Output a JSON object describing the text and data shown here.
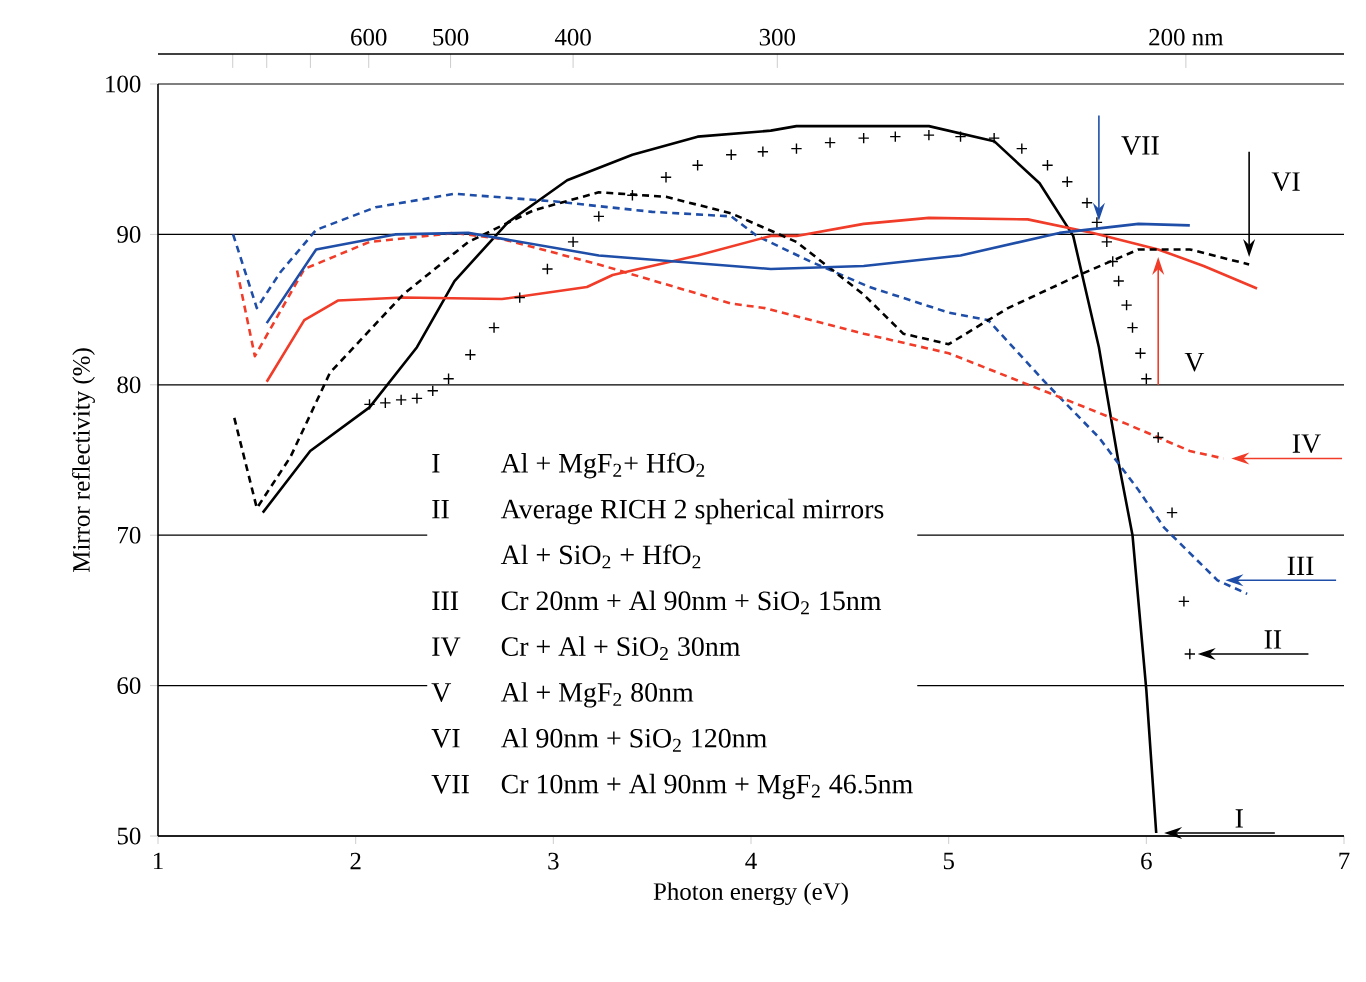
{
  "chart_data": {
    "type": "line",
    "xlabel": "Photon energy (eV)",
    "ylabel": "Mirror reflectivity (%)",
    "xlim": [
      1,
      7
    ],
    "xticks": [
      1,
      2,
      3,
      4,
      5,
      6,
      7
    ],
    "ylim": [
      50,
      100
    ],
    "yticks": [
      50,
      60,
      70,
      80,
      90,
      100
    ],
    "grid": "y",
    "legend": "right",
    "annotations": [
      "600",
      "500",
      "400",
      "300",
      "200 nm",
      "Al + MgF$_{2}$+ HfO$_{2}$",
      "Average RICH 2 spherical mirrors",
      "Al + SiO$_{2}$ + HfO$_{2}$",
      "Cr 20nm + Al 90nm + SiO$_{2}$ 15nm",
      "Cr + Al + SiO$_{2}$ 30nm",
      "Al + MgF$_{2}$ 80nm",
      "Al 90nm + SiO$_{2}$ 120nm",
      "Cr 10nm + Al 90nm + MgF$_{2}$ 46.5nm"
    ],
    "series": [
      {
        "name": "I",
        "color": "#000000",
        "line_style": "solid",
        "x": [
          1.53,
          1.77,
          2.07,
          2.31,
          2.5,
          2.77,
          3.07,
          3.4,
          3.73,
          4.1,
          4.23,
          4.9,
          5.23,
          5.46,
          5.63,
          5.76,
          5.86,
          5.93,
          6.0,
          6.05
        ],
        "values": [
          71.5,
          75.6,
          78.5,
          82.5,
          86.9,
          90.8,
          93.6,
          95.3,
          96.5,
          96.9,
          97.2,
          97.2,
          96.2,
          93.4,
          89.9,
          82.5,
          74.8,
          70,
          59.7,
          50.2
        ]
      },
      {
        "name": "II",
        "type": "scatter",
        "marker": "cross",
        "color": "#000000",
        "x": [
          2.07,
          2.15,
          2.23,
          2.31,
          2.39,
          2.47,
          2.58,
          2.7,
          2.83,
          2.97,
          3.1,
          3.23,
          3.4,
          3.57,
          3.73,
          3.9,
          4.06,
          4.23,
          4.4,
          4.57,
          4.73,
          4.9,
          5.06,
          5.23,
          5.37,
          5.5,
          5.6,
          5.7,
          5.75,
          5.8,
          5.83,
          5.86,
          5.9,
          5.93,
          5.97,
          6.0,
          6.06,
          6.13,
          6.19,
          6.22
        ],
        "values": [
          78.7,
          78.8,
          79.0,
          79.1,
          79.6,
          80.4,
          82.0,
          83.8,
          85.8,
          87.7,
          89.5,
          91.2,
          92.6,
          93.8,
          94.6,
          95.3,
          95.5,
          95.7,
          96.1,
          96.4,
          96.5,
          96.6,
          96.5,
          96.4,
          95.7,
          94.6,
          93.5,
          92.1,
          90.8,
          89.5,
          88.2,
          86.9,
          85.3,
          83.8,
          82.1,
          80.4,
          76.5,
          71.5,
          65.6,
          62.1
        ]
      },
      {
        "name": "III",
        "color": "#1f4ea8",
        "line_style": "dashed",
        "x": [
          1.38,
          1.5,
          1.62,
          1.8,
          2.1,
          2.5,
          3.0,
          3.5,
          3.9,
          4.03,
          4.3,
          4.6,
          5.0,
          5.2,
          5.5,
          5.76,
          5.96,
          6.09,
          6.36,
          6.51
        ],
        "values": [
          90,
          85.1,
          87.5,
          90.3,
          91.8,
          92.7,
          92.2,
          91.5,
          91.2,
          89.9,
          88.2,
          86.5,
          84.8,
          84.3,
          80,
          76.5,
          73,
          70.5,
          67,
          66.1
        ]
      },
      {
        "name": "IV",
        "color": "#f03c28",
        "line_style": "dashed",
        "x": [
          1.4,
          1.49,
          1.74,
          2.07,
          2.5,
          2.74,
          3.23,
          3.9,
          4.07,
          4.57,
          5.0,
          5.5,
          5.9,
          6.22,
          6.39
        ],
        "values": [
          87.6,
          81.9,
          87.7,
          89.5,
          90.1,
          89.7,
          88,
          85.4,
          85.1,
          83.4,
          82.1,
          79.5,
          77.4,
          75.6,
          75.1
        ]
      },
      {
        "name": "V",
        "color": "#f03c28",
        "line_style": "solid",
        "x": [
          1.55,
          1.74,
          1.91,
          2.24,
          2.74,
          3.17,
          3.3,
          3.73,
          4.1,
          4.23,
          4.57,
          4.9,
          5.4,
          5.73,
          6.06,
          6.29,
          6.56
        ],
        "values": [
          80.2,
          84.3,
          85.6,
          85.8,
          85.7,
          86.5,
          87.3,
          88.6,
          89.9,
          89.9,
          90.7,
          91.1,
          91,
          90.1,
          89,
          87.9,
          86.4
        ]
      },
      {
        "name": "VI",
        "color": "#000000",
        "line_style": "dashed",
        "x": [
          1.386,
          1.5,
          1.67,
          1.87,
          2.24,
          2.57,
          2.9,
          3.23,
          3.57,
          3.9,
          4.23,
          4.57,
          4.77,
          5.0,
          5.3,
          5.66,
          5.96,
          6.22,
          6.52
        ],
        "values": [
          77.8,
          71.8,
          75.2,
          80.8,
          86,
          89.5,
          91.6,
          92.8,
          92.5,
          91.4,
          89.5,
          86,
          83.4,
          82.7,
          85.1,
          87.3,
          89,
          89,
          88
        ]
      },
      {
        "name": "VII",
        "color": "#1f4ea8",
        "line_style": "solid",
        "x": [
          1.55,
          1.8,
          2.2,
          2.57,
          3.23,
          4.1,
          4.57,
          5.06,
          5.56,
          5.76,
          5.96,
          6.22
        ],
        "values": [
          84.1,
          89,
          90,
          90.1,
          88.6,
          87.7,
          87.9,
          88.6,
          90.1,
          90.4,
          90.7,
          90.6
        ]
      }
    ]
  }
}
